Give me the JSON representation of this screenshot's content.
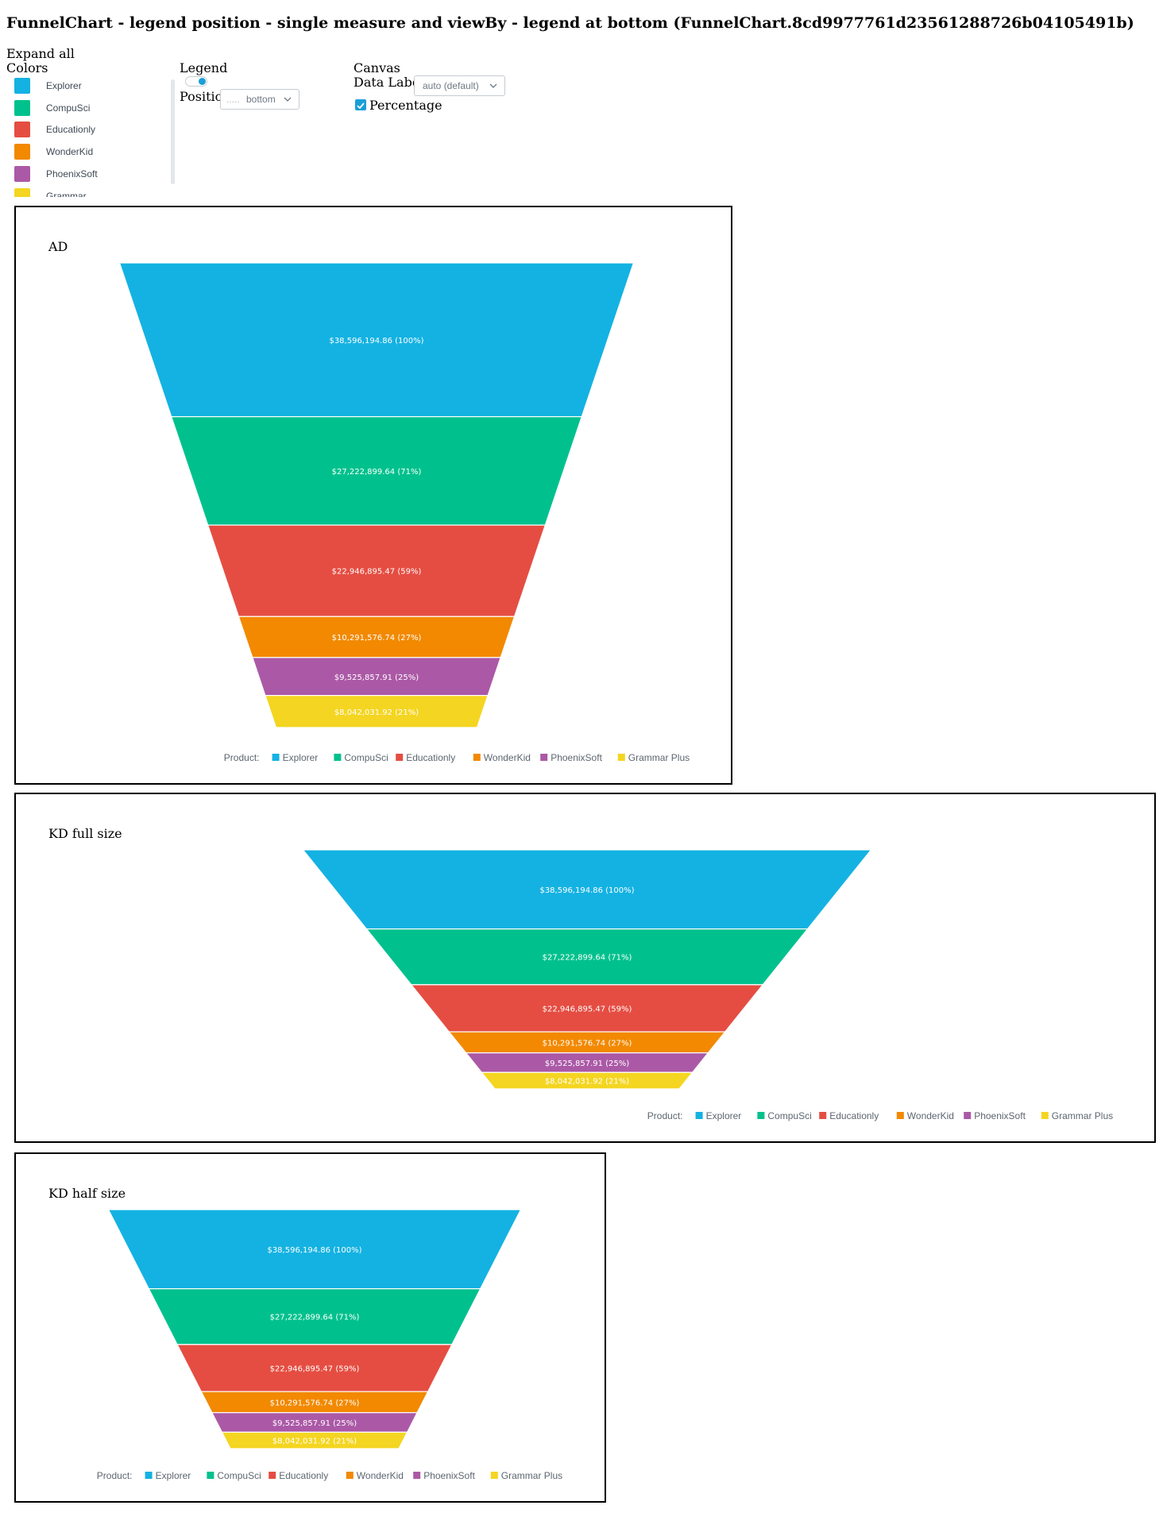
{
  "page": {
    "title": "FunnelChart - legend position - single measure and viewBy - legend at bottom (FunnelChart.8cd9977761d23561288726b04105491b)"
  },
  "controls": {
    "expand_all_label": "Expand all",
    "colors_heading": "Colors",
    "legend_heading": "Legend",
    "legend_enabled": true,
    "position_label": "Position",
    "position_value": "bottom",
    "position_prefix": ".....",
    "canvas_heading": "Canvas",
    "data_labels_label": "Data Labels",
    "data_labels_value": "auto (default)",
    "percentage_label": "Percentage",
    "percentage_checked": true
  },
  "colors": [
    {
      "name": "Explorer",
      "color": "#14b2e2"
    },
    {
      "name": "CompuSci",
      "color": "#00c18d"
    },
    {
      "name": "Educationly",
      "color": "#e54d42"
    },
    {
      "name": "WonderKid",
      "color": "#f28900"
    },
    {
      "name": "PhoenixSoft",
      "color": "#ab59a6"
    },
    {
      "name": "Grammar Plus",
      "color": "#f4d521"
    }
  ],
  "charts": [
    {
      "title": "AD"
    },
    {
      "title": "KD full size"
    },
    {
      "title": "KD half size"
    }
  ],
  "chart_data": {
    "type": "funnel",
    "legend_title": "Product:",
    "legend_position": "bottom",
    "categories": [
      "Explorer",
      "CompuSci",
      "Educationly",
      "WonderKid",
      "PhoenixSoft",
      "Grammar Plus"
    ],
    "values": [
      38596194.86,
      27222899.64,
      22946895.47,
      10291576.74,
      9525857.91,
      8042031.92
    ],
    "percentages": [
      100,
      71,
      59,
      27,
      25,
      21
    ],
    "labels": [
      "$38,596,194.86 (100%)",
      "$27,222,899.64 (71%)",
      "$22,946,895.47 (59%)",
      "$10,291,576.74 (27%)",
      "$9,525,857.91 (25%)",
      "$8,042,031.92 (21%)"
    ]
  }
}
